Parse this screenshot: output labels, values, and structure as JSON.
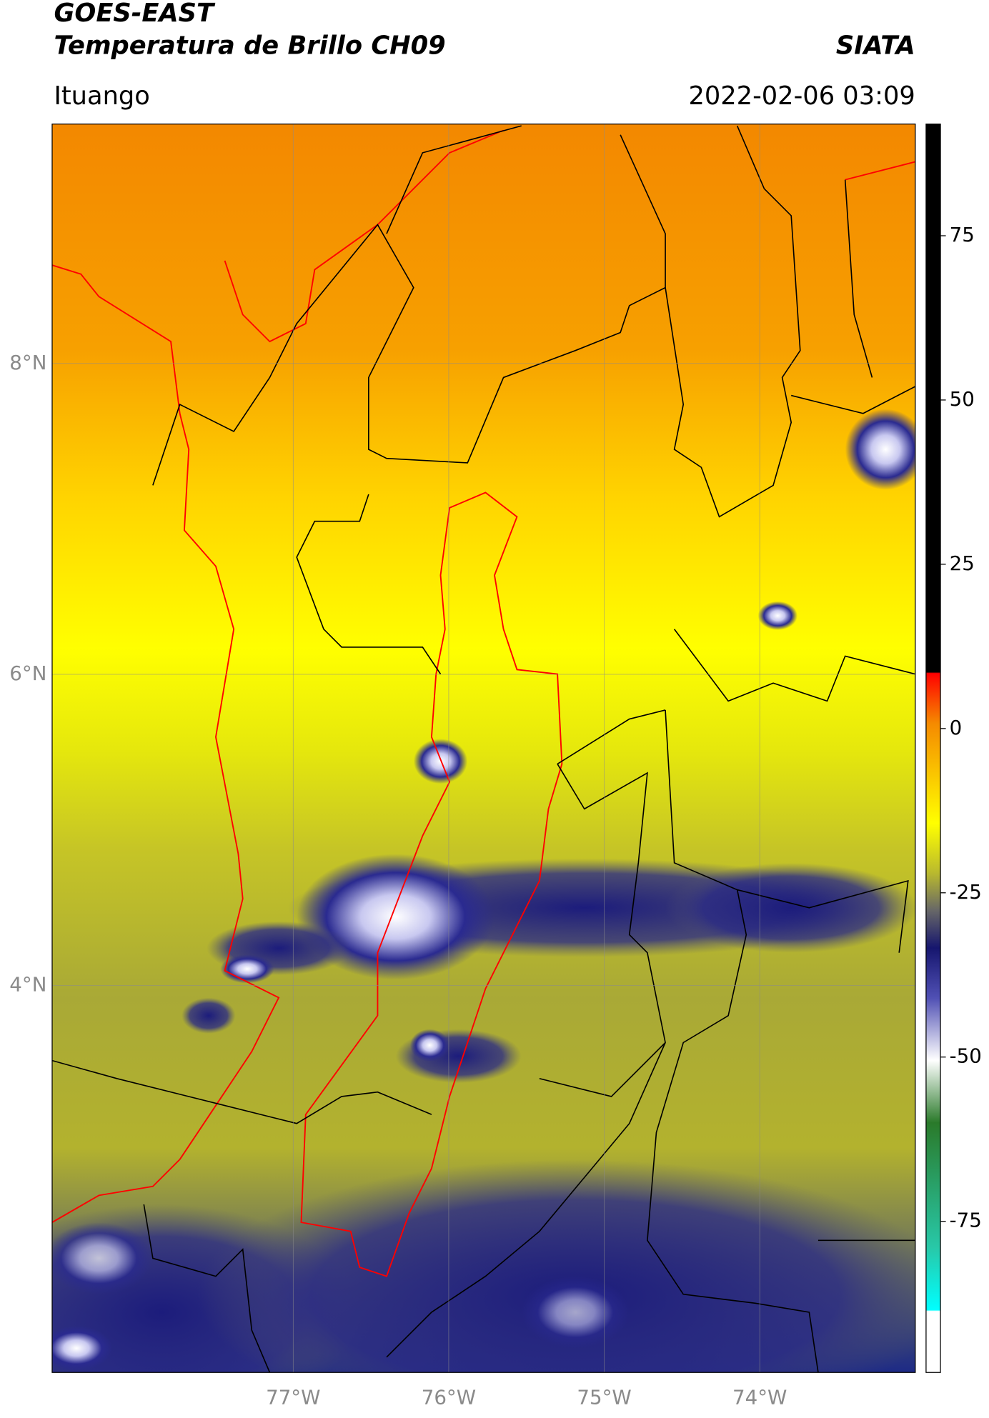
{
  "header": {
    "title": "GOES-EAST",
    "subtitle": "Temperatura de Brillo CH09",
    "source": "SIATA",
    "location": "Ituango",
    "datetime": "2022-02-06 03:09"
  },
  "map": {
    "xlim": [
      -78.55,
      -73.0
    ],
    "ylim": [
      1.51,
      9.54
    ],
    "xticks": [
      {
        "value": -77,
        "label": "77°W"
      },
      {
        "value": -76,
        "label": "76°W"
      },
      {
        "value": -75,
        "label": "75°W"
      },
      {
        "value": -74,
        "label": "74°W"
      }
    ],
    "yticks": [
      {
        "value": 8,
        "label": "8°N"
      },
      {
        "value": 6,
        "label": "6°N"
      },
      {
        "value": 4,
        "label": "4°N"
      }
    ],
    "grid": true
  },
  "colorbar": {
    "clim": [
      -98,
      92
    ],
    "ticks": [
      75,
      50,
      25,
      0,
      -25,
      -50,
      -75
    ]
  }
}
